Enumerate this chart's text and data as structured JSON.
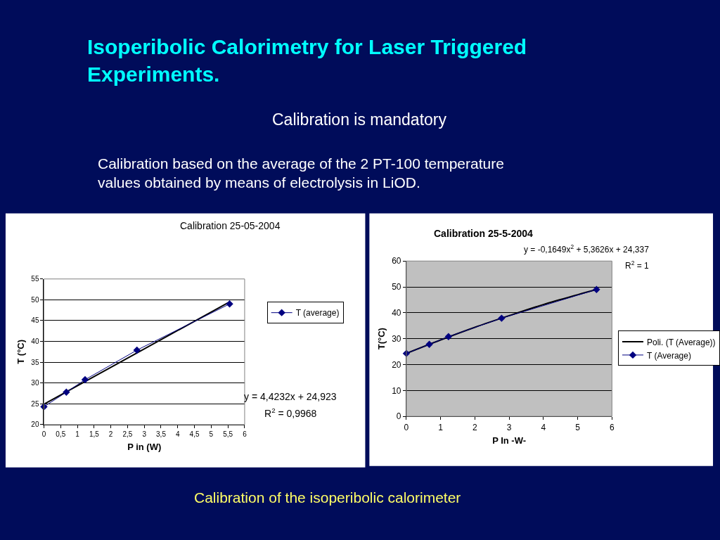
{
  "chart_data": [
    {
      "type": "other",
      "title": "Isoperibolic Calorimetry for Laser Triggered Experiments.",
      "subtitle": "Calibration is mandatory",
      "annotations": [
        "Calibration based on the average of the 2 PT-100 temperature values obtained by means of electrolysis in LiOD.",
        "Calibration of the isoperibolic calorimeter"
      ]
    },
    {
      "type": "line",
      "title": "Calibration 25-05-2004",
      "xlabel": "P in (W)",
      "ylabel": "T (°C)",
      "series": [
        {
          "name": "T (average)",
          "color": "#000080",
          "x": [
            0,
            0.67,
            1.23,
            2.78,
            5.55
          ],
          "values": [
            24.3,
            27.8,
            30.8,
            37.9,
            49.0
          ]
        },
        {
          "color": "#000000",
          "x": [
            0,
            5.55
          ],
          "values": [
            24.9,
            49.5
          ],
          "marker": "none"
        }
      ],
      "annotations": [
        "y = 4,4232x + 24,923",
        "R$^{2}$ = 0,9968"
      ],
      "xlim": [
        0,
        6
      ],
      "xticks": [
        0,
        {
          "value": 0.5,
          "label": "0,5"
        },
        1,
        {
          "value": 1.5,
          "label": "1,5"
        },
        2,
        {
          "value": 2.5,
          "label": "2,5"
        },
        3,
        {
          "value": 3.5,
          "label": "3,5"
        },
        4,
        {
          "value": 4.5,
          "label": "4,5"
        },
        5,
        {
          "value": 5.5,
          "label": "5,5"
        },
        6
      ],
      "ylim": [
        20,
        55
      ],
      "yticks": [
        20,
        25,
        30,
        35,
        40,
        45,
        50,
        55
      ],
      "grid": "y",
      "legend": "right",
      "marker": "diamond"
    },
    {
      "type": "line",
      "title": "Calibration 25-5-2004",
      "xlabel": "P In -W-",
      "ylabel": "T(°C)",
      "series": [
        {
          "name": "T (Average)",
          "color": "#000080",
          "x": [
            0,
            0.67,
            1.23,
            2.78,
            5.55
          ],
          "values": [
            24.3,
            27.8,
            30.8,
            37.9,
            49.0
          ]
        },
        {
          "name": "Poli. (T (Average))",
          "color": "#000000",
          "x": [
            0,
            1,
            2,
            3,
            4,
            5,
            5.55
          ],
          "values": [
            24.3,
            29.5,
            34.4,
            38.9,
            43.2,
            47.0,
            49.0
          ],
          "marker": "none"
        }
      ],
      "annotations": [
        "y = -0,1649x$^{2}$ + 5,3626x + 24,337",
        "R$^{2}$ = 1"
      ],
      "xlim": [
        0,
        6
      ],
      "xticks": [
        0,
        1,
        2,
        3,
        4,
        5,
        6
      ],
      "ylim": [
        0,
        60
      ],
      "yticks": [
        0,
        10,
        20,
        30,
        40,
        50,
        60
      ],
      "grid": "y",
      "legend": "right",
      "marker": "diamond"
    }
  ]
}
